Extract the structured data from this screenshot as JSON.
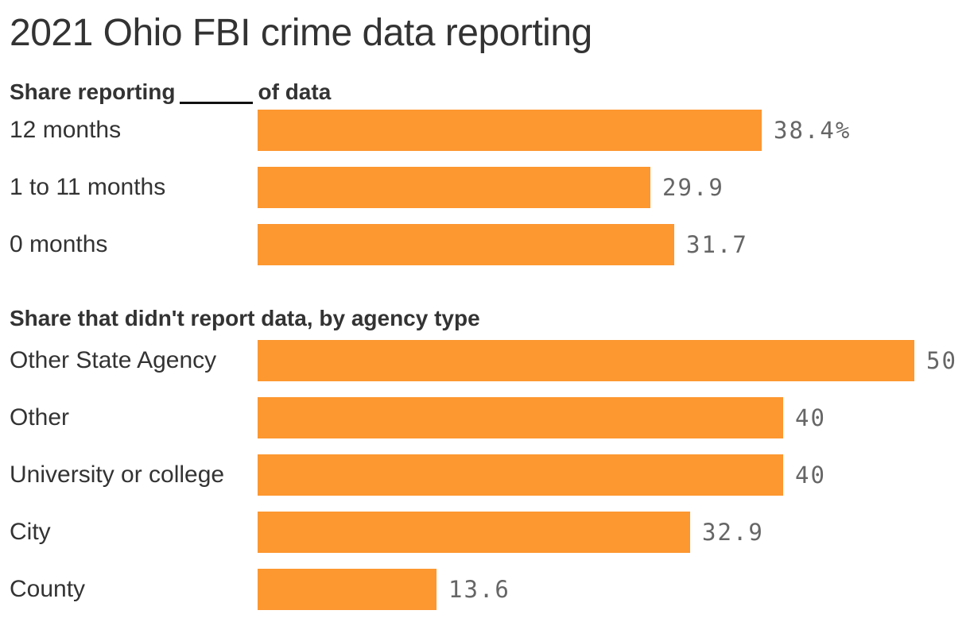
{
  "title": "2021 Ohio FBI crime data reporting",
  "section1": {
    "subtitle_before": "Share reporting",
    "subtitle_after": "of data"
  },
  "section2": {
    "subtitle": "Share that didn't report data, by agency type"
  },
  "colors": {
    "bar": "#fd9730",
    "text": "#333333",
    "value_text": "#666666"
  },
  "chart_data": [
    {
      "type": "bar",
      "orientation": "horizontal",
      "categories": [
        "12 months",
        "1 to 11 months",
        "0 months"
      ],
      "values": [
        38.4,
        29.9,
        31.7
      ],
      "value_labels": [
        "38.4%",
        "29.9",
        "31.7"
      ],
      "xlim": [
        0,
        50
      ]
    },
    {
      "type": "bar",
      "orientation": "horizontal",
      "categories": [
        "Other State Agency",
        "Other",
        "University or college",
        "City",
        "County"
      ],
      "values": [
        50,
        40,
        40,
        32.9,
        13.6
      ],
      "value_labels": [
        "50",
        "40",
        "40",
        "32.9",
        "13.6"
      ],
      "xlim": [
        0,
        50
      ]
    }
  ]
}
